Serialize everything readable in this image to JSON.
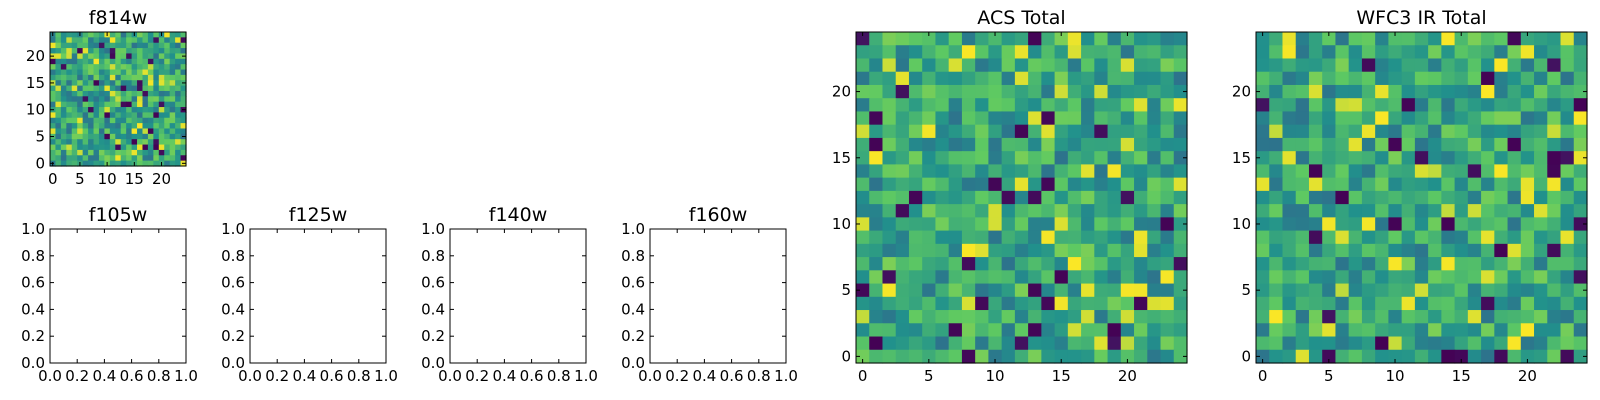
{
  "chart_data": [
    {
      "type": "heatmap",
      "title": "f814w",
      "grid_size": 25,
      "seed": 814,
      "x_ticks": [
        0,
        5,
        10,
        15,
        20
      ],
      "y_ticks": [
        0,
        5,
        10,
        15,
        20
      ],
      "xlim": [
        -0.5,
        24.5
      ],
      "ylim": [
        -0.5,
        24.5
      ],
      "colormap": "viridis",
      "xlabel": "",
      "ylabel": ""
    },
    {
      "type": "empty",
      "title": "f105w",
      "x_ticks": [
        "0.0",
        "0.2",
        "0.4",
        "0.6",
        "0.8",
        "1.0"
      ],
      "y_ticks": [
        "0.0",
        "0.2",
        "0.4",
        "0.6",
        "0.8",
        "1.0"
      ],
      "xlim": [
        0,
        1
      ],
      "ylim": [
        0,
        1
      ]
    },
    {
      "type": "empty",
      "title": "f125w",
      "x_ticks": [
        "0.0",
        "0.2",
        "0.4",
        "0.6",
        "0.8",
        "1.0"
      ],
      "y_ticks": [
        "0.0",
        "0.2",
        "0.4",
        "0.6",
        "0.8",
        "1.0"
      ],
      "xlim": [
        0,
        1
      ],
      "ylim": [
        0,
        1
      ]
    },
    {
      "type": "empty",
      "title": "f140w",
      "x_ticks": [
        "0.0",
        "0.2",
        "0.4",
        "0.6",
        "0.8",
        "1.0"
      ],
      "y_ticks": [
        "0.0",
        "0.2",
        "0.4",
        "0.6",
        "0.8",
        "1.0"
      ],
      "xlim": [
        0,
        1
      ],
      "ylim": [
        0,
        1
      ]
    },
    {
      "type": "empty",
      "title": "f160w",
      "x_ticks": [
        "0.0",
        "0.2",
        "0.4",
        "0.6",
        "0.8",
        "1.0"
      ],
      "y_ticks": [
        "0.0",
        "0.2",
        "0.4",
        "0.6",
        "0.8",
        "1.0"
      ],
      "xlim": [
        0,
        1
      ],
      "ylim": [
        0,
        1
      ]
    },
    {
      "type": "heatmap",
      "title": "ACS Total",
      "grid_size": 25,
      "seed": 2024,
      "x_ticks": [
        0,
        5,
        10,
        15,
        20
      ],
      "y_ticks": [
        0,
        5,
        10,
        15,
        20
      ],
      "xlim": [
        -0.5,
        24.5
      ],
      "ylim": [
        -0.5,
        24.5
      ],
      "colormap": "viridis",
      "xlabel": "",
      "ylabel": ""
    },
    {
      "type": "heatmap",
      "title": "WFC3 IR Total",
      "grid_size": 25,
      "seed": 3131,
      "x_ticks": [
        0,
        5,
        10,
        15,
        20
      ],
      "y_ticks": [
        0,
        5,
        10,
        15,
        20
      ],
      "xlim": [
        -0.5,
        24.5
      ],
      "ylim": [
        -0.5,
        24.5
      ],
      "colormap": "viridis",
      "xlabel": "",
      "ylabel": ""
    }
  ],
  "colors": {
    "axis": "#000000",
    "viridis_stops": [
      "#440154",
      "#3b528b",
      "#21918c",
      "#5ec962",
      "#fde725"
    ]
  }
}
